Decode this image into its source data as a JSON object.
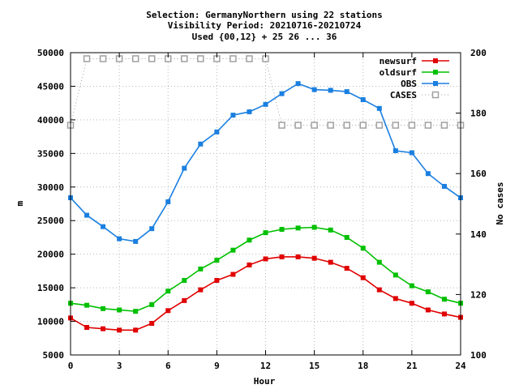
{
  "chart_data": {
    "type": "line",
    "title_lines": [
      "Selection: GermanyNorthern using    22 stations",
      "Visibility   Period: 20210716-20210724",
      "Used {00,12} + 25 26 ... 36"
    ],
    "xlabel": "Hour",
    "ylabel": "m",
    "y2label": "No cases",
    "xlim": [
      0,
      24
    ],
    "ylim": [
      5000,
      50000
    ],
    "y2lim": [
      100,
      200
    ],
    "xticks": [
      "0",
      "3",
      "6",
      "9",
      "12",
      "15",
      "18",
      "21",
      "24"
    ],
    "yticks": [
      "5000",
      "10000",
      "15000",
      "20000",
      "25000",
      "30000",
      "35000",
      "40000",
      "45000",
      "50000"
    ],
    "y2ticks": [
      "100",
      "120",
      "140",
      "160",
      "180",
      "200"
    ],
    "grid": true,
    "legend_position": "top-right",
    "x": [
      0,
      1,
      2,
      3,
      4,
      5,
      6,
      7,
      8,
      9,
      10,
      11,
      12,
      13,
      14,
      15,
      16,
      17,
      18,
      19,
      20,
      21,
      22,
      23,
      24
    ],
    "series": [
      {
        "name": "newsurf",
        "color": "#e00000",
        "axis": "left",
        "marker": "filled-square",
        "values": [
          10500,
          9100,
          8900,
          8700,
          8700,
          9700,
          11600,
          13100,
          14700,
          16100,
          17000,
          18400,
          19300,
          19600,
          19600,
          19400,
          18800,
          17900,
          16500,
          14700,
          13400,
          12700,
          11700,
          11100,
          10600
        ]
      },
      {
        "name": "oldsurf",
        "color": "#00c000",
        "axis": "left",
        "marker": "filled-square",
        "values": [
          12700,
          12400,
          11900,
          11700,
          11500,
          12500,
          14500,
          16100,
          17800,
          19100,
          20600,
          22100,
          23200,
          23700,
          23900,
          24000,
          23600,
          22500,
          20900,
          18800,
          16900,
          15300,
          14400,
          13300,
          12700
        ]
      },
      {
        "name": "OBS",
        "color": "#1a7fe0",
        "axis": "left",
        "marker": "filled-square",
        "values": [
          28400,
          25800,
          24100,
          22300,
          21900,
          23800,
          27800,
          32800,
          36400,
          38200,
          40700,
          41200,
          42300,
          43900,
          45400,
          44500,
          44400,
          44200,
          43000,
          41700,
          35400,
          35100,
          32000,
          30100,
          28400
        ]
      },
      {
        "name": "CASES",
        "color": "#a0a0a0",
        "axis": "right",
        "marker": "open-square",
        "values": [
          176,
          198,
          198,
          198,
          198,
          198,
          198,
          198,
          198,
          198,
          198,
          198,
          198,
          176,
          176,
          176,
          176,
          176,
          176,
          176,
          176,
          176,
          176,
          176,
          176
        ]
      }
    ]
  }
}
